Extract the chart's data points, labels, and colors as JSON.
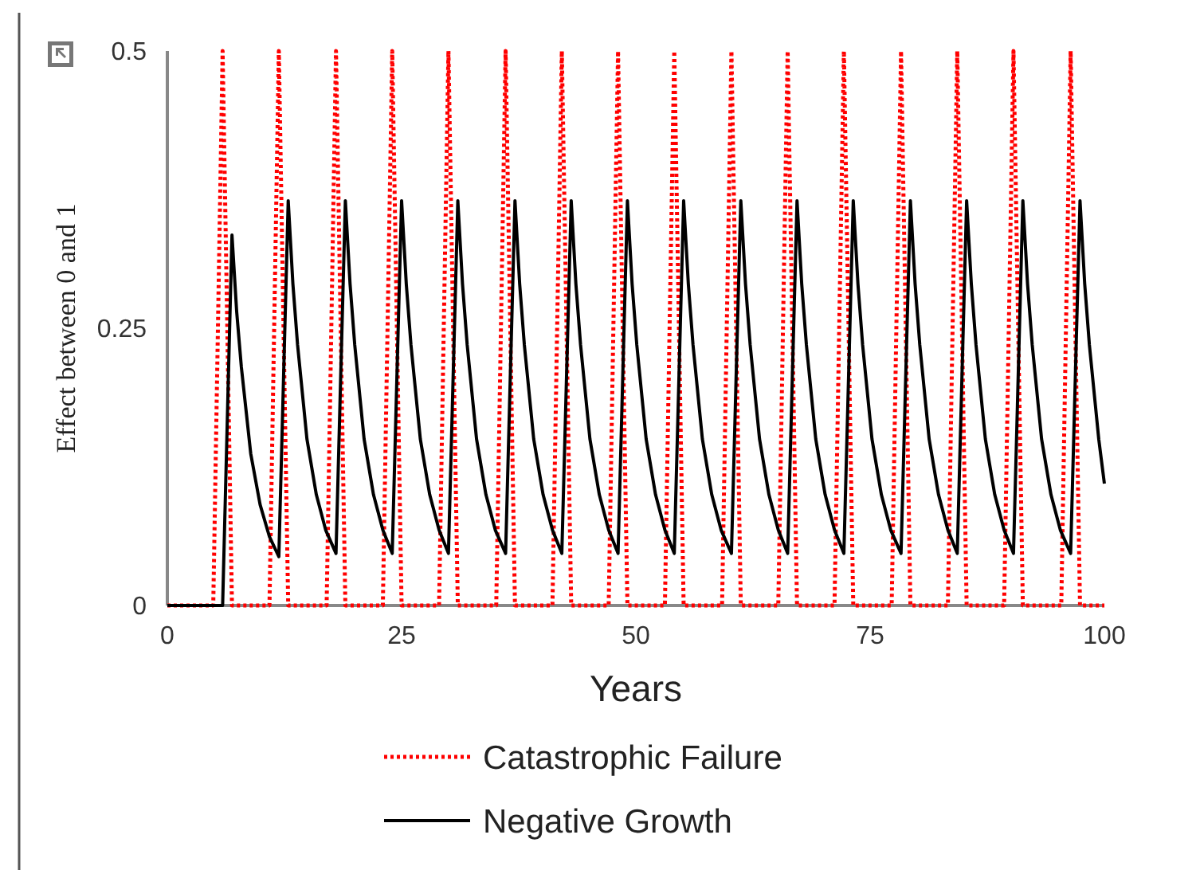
{
  "chart_data": {
    "type": "line",
    "xlabel": "Years",
    "ylabel": "Effect between 0 and 1",
    "xlim": [
      0,
      100
    ],
    "xticks": [
      0,
      25,
      50,
      75,
      100
    ],
    "ylim": [
      0,
      0.5
    ],
    "yticks": [
      0,
      0.25,
      0.5
    ],
    "grid": false,
    "legend": "bottom",
    "marker": "none",
    "series": [
      {
        "name": "Catastrophic Failure",
        "color": "#ff0000",
        "line_style": "dotted",
        "x": [
          0,
          4.9,
          5.9,
          6.9,
          10.9,
          11.9,
          12.9,
          17.0,
          18.0,
          19.0,
          23.0,
          24.0,
          25.0,
          29.0,
          30.0,
          31.0,
          35.1,
          36.1,
          37.1,
          41.1,
          42.1,
          43.1,
          47.1,
          48.1,
          49.1,
          53.1,
          54.1,
          55.1,
          59.2,
          60.2,
          61.2,
          65.2,
          66.2,
          67.2,
          71.2,
          72.2,
          73.2,
          77.3,
          78.3,
          79.3,
          83.3,
          84.3,
          85.3,
          89.3,
          90.3,
          91.3,
          95.4,
          96.4,
          97.4,
          100
        ],
        "values": [
          0,
          0,
          0.5,
          0,
          0,
          0.5,
          0,
          0,
          0.5,
          0,
          0,
          0.5,
          0,
          0,
          0.5,
          0,
          0,
          0.5,
          0,
          0,
          0.5,
          0,
          0,
          0.5,
          0,
          0,
          0.5,
          0,
          0,
          0.5,
          0,
          0,
          0.5,
          0,
          0,
          0.5,
          0,
          0,
          0.5,
          0,
          0,
          0.5,
          0,
          0,
          0.5,
          0,
          0,
          0.5,
          0,
          0
        ]
      },
      {
        "name": "Negative Growth",
        "color": "#000000",
        "line_style": "solid",
        "x": [
          0,
          5.9,
          6.9,
          7.4,
          7.9,
          8.9,
          9.9,
          10.9,
          11.9,
          12.9,
          13.4,
          13.9,
          14.9,
          15.9,
          16.9,
          18.0,
          19.0,
          19.5,
          20.0,
          21.0,
          22.0,
          23.0,
          24.0,
          25.0,
          25.5,
          26.0,
          27.0,
          28.0,
          29.0,
          30.0,
          31.0,
          31.5,
          32.0,
          33.0,
          34.0,
          35.0,
          36.1,
          37.1,
          37.6,
          38.1,
          39.1,
          40.1,
          41.1,
          42.1,
          43.1,
          43.6,
          44.1,
          45.1,
          46.1,
          47.1,
          48.1,
          49.1,
          49.6,
          50.1,
          51.1,
          52.1,
          53.1,
          54.1,
          55.1,
          55.6,
          56.1,
          57.1,
          58.1,
          59.1,
          60.2,
          61.2,
          61.7,
          62.2,
          63.2,
          64.2,
          65.2,
          66.2,
          67.2,
          67.7,
          68.2,
          69.2,
          70.2,
          71.2,
          72.2,
          73.2,
          73.7,
          74.2,
          75.2,
          76.2,
          77.2,
          78.3,
          79.3,
          79.8,
          80.3,
          81.3,
          82.3,
          83.3,
          84.3,
          85.3,
          85.8,
          86.3,
          87.3,
          88.3,
          89.3,
          90.3,
          91.3,
          91.8,
          92.3,
          93.3,
          94.3,
          95.3,
          96.4,
          97.4,
          97.9,
          98.4,
          99.4,
          100
        ],
        "values": [
          0,
          0,
          0.334,
          0.265,
          0.215,
          0.137,
          0.091,
          0.062,
          0.044,
          0.365,
          0.29,
          0.235,
          0.15,
          0.1,
          0.068,
          0.047,
          0.365,
          0.29,
          0.235,
          0.15,
          0.1,
          0.068,
          0.047,
          0.365,
          0.29,
          0.235,
          0.15,
          0.1,
          0.068,
          0.047,
          0.365,
          0.29,
          0.235,
          0.15,
          0.1,
          0.068,
          0.047,
          0.365,
          0.29,
          0.235,
          0.15,
          0.1,
          0.068,
          0.047,
          0.365,
          0.29,
          0.235,
          0.15,
          0.1,
          0.068,
          0.047,
          0.365,
          0.29,
          0.235,
          0.15,
          0.1,
          0.068,
          0.047,
          0.365,
          0.29,
          0.235,
          0.15,
          0.1,
          0.068,
          0.047,
          0.365,
          0.29,
          0.235,
          0.15,
          0.1,
          0.068,
          0.047,
          0.365,
          0.29,
          0.235,
          0.15,
          0.1,
          0.068,
          0.047,
          0.365,
          0.29,
          0.235,
          0.15,
          0.1,
          0.068,
          0.047,
          0.365,
          0.29,
          0.235,
          0.15,
          0.1,
          0.068,
          0.047,
          0.365,
          0.29,
          0.235,
          0.15,
          0.1,
          0.068,
          0.047,
          0.365,
          0.29,
          0.235,
          0.15,
          0.1,
          0.068,
          0.047,
          0.365,
          0.29,
          0.235,
          0.15,
          0.11
        ]
      }
    ]
  }
}
